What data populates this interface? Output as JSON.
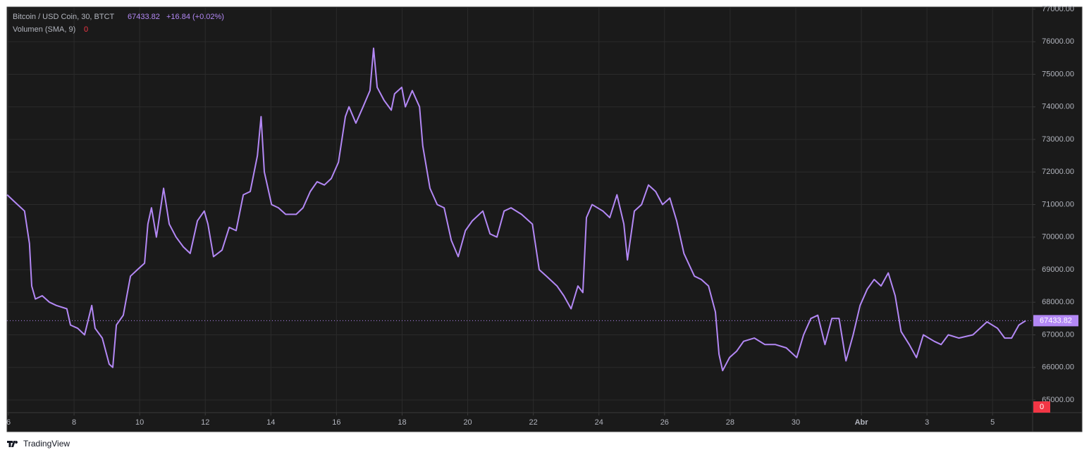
{
  "chart_data": {
    "type": "line",
    "title": "Bitcoin / USD Coin, 30, BTCT",
    "last_price": 67433.82,
    "change_label": "+16.84 (+0.02%)",
    "volume_label": "Volumen (SMA, 9)",
    "volume_value": 0,
    "brand": "TradingView",
    "x": [
      5.96,
      6.17,
      6.49,
      6.64,
      6.71,
      6.82,
      7.03,
      7.25,
      7.46,
      7.78,
      7.89,
      8.11,
      8.32,
      8.54,
      8.64,
      8.86,
      9.07,
      9.18,
      9.29,
      9.5,
      9.72,
      9.93,
      10.15,
      10.25,
      10.36,
      10.51,
      10.73,
      10.9,
      11.11,
      11.33,
      11.54,
      11.76,
      11.97,
      12.08,
      12.25,
      12.51,
      12.73,
      12.94,
      13.16,
      13.37,
      13.59,
      13.7,
      13.8,
      14.02,
      14.23,
      14.45,
      14.77,
      14.98,
      15.2,
      15.41,
      15.63,
      15.84,
      16.06,
      16.27,
      16.38,
      16.59,
      16.81,
      17.02,
      17.13,
      17.24,
      17.45,
      17.67,
      17.77,
      17.99,
      18.1,
      18.31,
      18.53,
      18.63,
      18.85,
      19.07,
      19.28,
      19.5,
      19.71,
      19.93,
      20.14,
      20.46,
      20.68,
      20.89,
      21.11,
      21.32,
      21.64,
      21.97,
      22.18,
      22.4,
      22.72,
      22.93,
      23.15,
      23.36,
      23.51,
      23.62,
      23.79,
      24.12,
      24.33,
      24.55,
      24.76,
      24.87,
      25.08,
      25.3,
      25.51,
      25.73,
      25.94,
      26.16,
      26.37,
      26.59,
      26.91,
      27.12,
      27.34,
      27.55,
      27.66,
      27.77,
      27.98,
      28.2,
      28.41,
      28.74,
      29.06,
      29.38,
      29.71,
      30.03,
      30.24,
      30.46,
      30.67,
      30.89,
      31.1,
      31.32,
      31.53,
      31.75,
      31.96,
      32.18,
      32.39,
      32.6,
      32.82,
      33.03,
      33.21,
      33.46,
      33.68,
      33.89,
      34.22,
      34.43,
      34.65,
      34.97,
      35.4,
      35.83,
      36.15,
      36.37,
      36.58,
      36.8,
      37.01
    ],
    "series": [
      {
        "name": "Bitcoin / USD Coin",
        "color": "#b388f5",
        "values": [
          71300,
          71100,
          70800,
          69800,
          68500,
          68100,
          68200,
          68000,
          67900,
          67800,
          67300,
          67200,
          67000,
          67900,
          67200,
          66900,
          66100,
          66000,
          67300,
          67600,
          68800,
          69000,
          69200,
          70400,
          70900,
          70000,
          71500,
          70400,
          70000,
          69700,
          69500,
          70500,
          70800,
          70400,
          69400,
          69600,
          70300,
          70200,
          71300,
          71400,
          72500,
          73700,
          72000,
          71000,
          70900,
          70700,
          70700,
          70900,
          71400,
          71700,
          71600,
          71800,
          72300,
          73700,
          74000,
          73500,
          74000,
          74500,
          75800,
          74600,
          74200,
          73900,
          74400,
          74600,
          74000,
          74500,
          74000,
          72800,
          71500,
          71000,
          70900,
          69900,
          69400,
          70200,
          70500,
          70800,
          70100,
          70000,
          70800,
          70900,
          70700,
          70400,
          69000,
          68800,
          68500,
          68200,
          67800,
          68500,
          68300,
          70600,
          71000,
          70800,
          70600,
          71300,
          70400,
          69300,
          70800,
          71000,
          71600,
          71400,
          71000,
          71200,
          70500,
          69500,
          68800,
          68700,
          68500,
          67700,
          66400,
          65900,
          66300,
          66500,
          66800,
          66900,
          66700,
          66700,
          66600,
          66300,
          67000,
          67500,
          67600,
          66700,
          67500,
          67500,
          66200,
          67000,
          67900,
          68400,
          68700,
          68500,
          68900,
          68200,
          67100,
          66700,
          66300,
          67000,
          66800,
          66700,
          67000,
          66900,
          67000,
          67400,
          67200,
          66900,
          66900,
          67300,
          67434
        ]
      }
    ],
    "xlim": [
      5.957,
      37.22
    ],
    "ylim": [
      64610,
      77065
    ],
    "xticks": [
      6,
      8,
      10,
      12,
      14,
      16,
      18,
      20,
      22,
      24,
      26,
      28,
      30,
      {
        "value": 32,
        "label": "Abr"
      },
      {
        "value": 34,
        "label": "3"
      },
      {
        "value": 36,
        "label": "5"
      }
    ],
    "yticks": [
      {
        "value": 65000,
        "label": "65000.00"
      },
      {
        "value": 66000,
        "label": "66000.00"
      },
      {
        "value": 67000,
        "label": "67000.00"
      },
      {
        "value": 68000,
        "label": "68000.00"
      },
      {
        "value": 69000,
        "label": "69000.00"
      },
      {
        "value": 70000,
        "label": "70000.00"
      },
      {
        "value": 71000,
        "label": "71000.00"
      },
      {
        "value": 72000,
        "label": "72000.00"
      },
      {
        "value": 73000,
        "label": "73000.00"
      },
      {
        "value": 74000,
        "label": "74000.00"
      },
      {
        "value": 75000,
        "label": "75000.00"
      },
      {
        "value": 76000,
        "label": "76000.00"
      },
      {
        "value": 77000,
        "label": "77000.00"
      }
    ],
    "grid": true
  }
}
